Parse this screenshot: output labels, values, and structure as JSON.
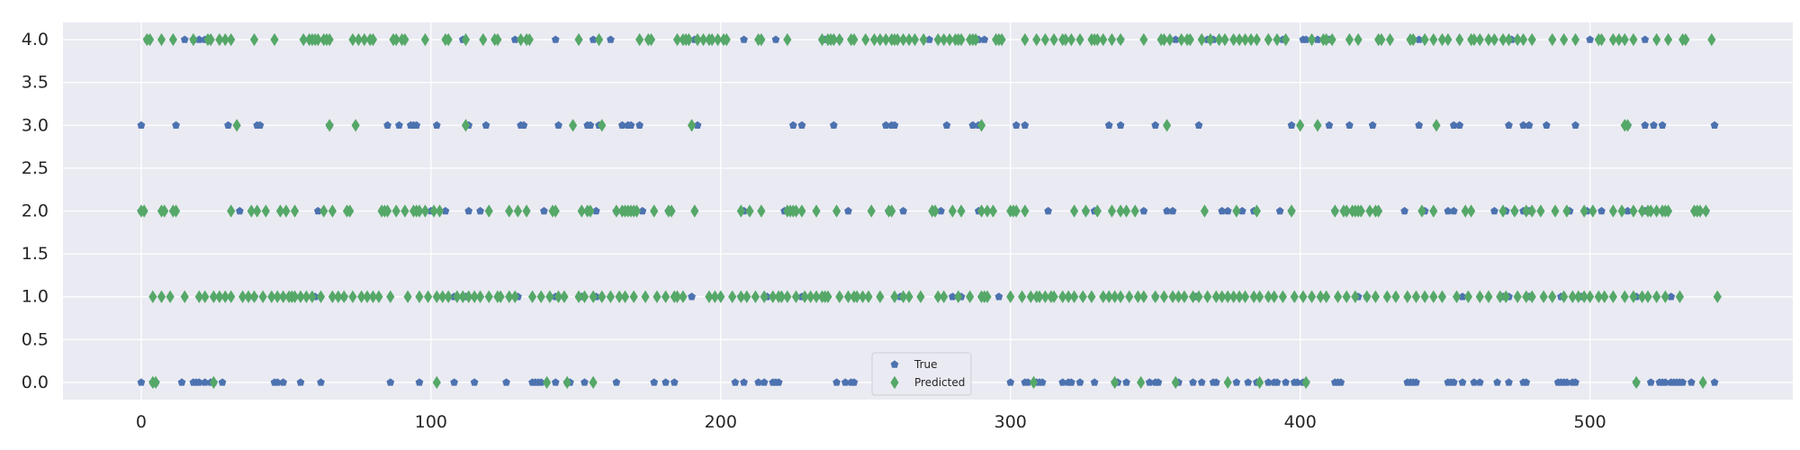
{
  "chart_data": {
    "type": "scatter",
    "title": "",
    "xlabel": "",
    "ylabel": "",
    "xlim": [
      -27,
      570
    ],
    "ylim": [
      -0.2,
      4.2
    ],
    "xticks": [
      0,
      100,
      200,
      300,
      400,
      500
    ],
    "xtick_labels": [
      "0",
      "100",
      "200",
      "300",
      "400",
      "500"
    ],
    "yticks": [
      0.0,
      0.5,
      1.0,
      1.5,
      2.0,
      2.5,
      3.0,
      3.5,
      4.0
    ],
    "ytick_labels": [
      "0.0",
      "0.5",
      "1.0",
      "1.5",
      "2.0",
      "2.5",
      "3.0",
      "3.5",
      "4.0"
    ],
    "grid": true,
    "legend_position": "bottom-center",
    "background_color": "#eaeaf2",
    "grid_color": "#ffffff",
    "series": [
      {
        "name": "True",
        "marker": "pentagon",
        "color": "#4c72b0",
        "points": [
          {
            "y": 0,
            "x": [
              0,
              4,
              5,
              14,
              18,
              19,
              20,
              22,
              24,
              25,
              28,
              46,
              47,
              49,
              55,
              62,
              86,
              96,
              108,
              115,
              126,
              135,
              136,
              137,
              138,
              143,
              147,
              148,
              153,
              164,
              177,
              181,
              184,
              205,
              208,
              213,
              215,
              218,
              219,
              220,
              240,
              243,
              245,
              246,
              266,
              300,
              305,
              306,
              309,
              310,
              311,
              318,
              320,
              321,
              324,
              329,
              336,
              337,
              340,
              348,
              350,
              351,
              358,
              363,
              366,
              370,
              371,
              378,
              382,
              385,
              389,
              391,
              392,
              395,
              398,
              399,
              401,
              402,
              412,
              413,
              414,
              437,
              438,
              439,
              440,
              451,
              452,
              453,
              456,
              460,
              462,
              468,
              472,
              477,
              478,
              489,
              490,
              491,
              492,
              494,
              495,
              516,
              521,
              524,
              525,
              526,
              528,
              529,
              530,
              531,
              532,
              535,
              543
            ]
          },
          {
            "y": 1,
            "x": [
              39,
              60,
              70,
              108,
              112,
              130,
              143,
              152,
              157,
              190,
              207,
              216,
              228,
              262,
              280,
              283,
              296,
              350,
              364,
              420,
              423,
              456,
              470,
              472,
              479,
              490,
              497,
              516,
              528
            ]
          },
          {
            "y": 2,
            "x": [
              0,
              34,
              61,
              100,
              105,
              113,
              117,
              139,
              157,
              164,
              169,
              173,
              182,
              208,
              222,
              226,
              244,
              258,
              263,
              276,
              289,
              313,
              326,
              329,
              346,
              354,
              356,
              373,
              375,
              380,
              384,
              393,
              397,
              412,
              416,
              436,
              443,
              451,
              453,
              467,
              471,
              474,
              477,
              479,
              493,
              499,
              504,
              513,
              519,
              520,
              540
            ]
          },
          {
            "y": 3,
            "x": [
              0,
              12,
              30,
              40,
              41,
              65,
              85,
              89,
              93,
              94,
              95,
              102,
              113,
              119,
              131,
              132,
              144,
              154,
              155,
              158,
              166,
              168,
              169,
              172,
              192,
              225,
              228,
              239,
              257,
              259,
              260,
              278,
              287,
              289,
              302,
              305,
              334,
              338,
              350,
              365,
              397,
              410,
              417,
              425,
              441,
              453,
              455,
              472,
              477,
              479,
              485,
              495,
              513,
              519,
              522,
              525,
              543
            ]
          },
          {
            "y": 4,
            "x": [
              2,
              15,
              18,
              20,
              22,
              111,
              129,
              143,
              156,
              162,
              191,
              208,
              219,
              236,
              241,
              272,
              289,
              291,
              338,
              357,
              368,
              370,
              394,
              401,
              402,
              406,
              410,
              441,
              473,
              500,
              519
            ]
          }
        ]
      },
      {
        "name": "Predicted",
        "marker": "thin_diamond",
        "color": "#55a868",
        "points": [
          {
            "y": 0,
            "x": [
              4,
              5,
              25,
              102,
              140,
              147,
              156,
              308,
              336,
              345,
              357,
              375,
              386,
              402,
              516,
              539
            ]
          },
          {
            "y": 1,
            "x": [
              4,
              7,
              10,
              15,
              20,
              22,
              25,
              27,
              29,
              31,
              35,
              37,
              39,
              42,
              45,
              47,
              49,
              51,
              52,
              53,
              55,
              57,
              59,
              62,
              66,
              68,
              70,
              73,
              76,
              78,
              80,
              82,
              86,
              92,
              96,
              99,
              102,
              104,
              106,
              109,
              111,
              113,
              115,
              117,
              120,
              123,
              124,
              127,
              129,
              135,
              138,
              141,
              144,
              146,
              151,
              153,
              156,
              159,
              162,
              165,
              167,
              170,
              174,
              178,
              181,
              184,
              185,
              187,
              196,
              198,
              200,
              204,
              207,
              209,
              212,
              215,
              218,
              220,
              221,
              223,
              226,
              229,
              231,
              233,
              235,
              236,
              237,
              241,
              244,
              246,
              247,
              249,
              251,
              255,
              260,
              263,
              265,
              269,
              275,
              277,
              282,
              286,
              290,
              291,
              292,
              300,
              304,
              307,
              309,
              310,
              312,
              314,
              315,
              318,
              320,
              322,
              325,
              328,
              332,
              334,
              336,
              338,
              341,
              344,
              346,
              350,
              353,
              356,
              358,
              360,
              363,
              365,
              368,
              371,
              373,
              375,
              377,
              379,
              381,
              384,
              386,
              389,
              391,
              394,
              398,
              401,
              404,
              407,
              409,
              413,
              416,
              419,
              423,
              426,
              430,
              433,
              437,
              440,
              443,
              446,
              449,
              454,
              458,
              462,
              465,
              469,
              471,
              475,
              478,
              480,
              484,
              487,
              491,
              494,
              496,
              498,
              500,
              503,
              505,
              508,
              512,
              515,
              518,
              520,
              523,
              526,
              531,
              544
            ]
          },
          {
            "y": 2,
            "x": [
              0,
              1,
              7,
              8,
              11,
              12,
              31,
              38,
              40,
              43,
              48,
              50,
              53,
              63,
              66,
              71,
              72,
              83,
              84,
              85,
              88,
              91,
              94,
              95,
              96,
              98,
              101,
              103,
              120,
              127,
              130,
              133,
              142,
              143,
              152,
              154,
              155,
              164,
              166,
              167,
              168,
              169,
              170,
              171,
              177,
              182,
              183,
              191,
              207,
              210,
              214,
              223,
              224,
              225,
              226,
              228,
              233,
              240,
              252,
              258,
              259,
              273,
              274,
              280,
              283,
              290,
              292,
              294,
              300,
              301,
              302,
              305,
              322,
              326,
              330,
              335,
              338,
              340,
              343,
              367,
              378,
              385,
              397,
              412,
              415,
              416,
              418,
              419,
              420,
              421,
              424,
              426,
              427,
              442,
              446,
              457,
              459,
              470,
              474,
              478,
              480,
              483,
              488,
              492,
              498,
              501,
              508,
              511,
              515,
              518,
              520,
              521,
              523,
              525,
              526,
              527,
              536,
              537,
              538,
              540
            ]
          },
          {
            "y": 3,
            "x": [
              33,
              65,
              74,
              112,
              149,
              159,
              190,
              290,
              354,
              400,
              406,
              447,
              512,
              513
            ]
          },
          {
            "y": 4,
            "x": [
              2,
              3,
              7,
              11,
              18,
              23,
              24,
              27,
              29,
              31,
              39,
              46,
              56,
              58,
              59,
              60,
              61,
              63,
              64,
              65,
              73,
              75,
              77,
              79,
              80,
              87,
              88,
              90,
              91,
              98,
              105,
              106,
              112,
              118,
              122,
              123,
              131,
              133,
              134,
              151,
              158,
              172,
              175,
              176,
              185,
              187,
              188,
              189,
              192,
              194,
              196,
              197,
              199,
              201,
              202,
              213,
              214,
              223,
              235,
              237,
              238,
              239,
              241,
              245,
              246,
              250,
              253,
              255,
              257,
              259,
              260,
              261,
              263,
              265,
              267,
              270,
              275,
              277,
              279,
              281,
              282,
              283,
              286,
              287,
              288,
              295,
              296,
              297,
              305,
              309,
              312,
              315,
              318,
              319,
              321,
              324,
              328,
              329,
              330,
              332,
              335,
              338,
              346,
              352,
              353,
              355,
              359,
              361,
              362,
              366,
              369,
              372,
              374,
              377,
              379,
              381,
              383,
              385,
              389,
              392,
              395,
              404,
              408,
              409,
              411,
              417,
              420,
              427,
              428,
              431,
              438,
              439,
              443,
              446,
              449,
              451,
              455,
              459,
              460,
              462,
              465,
              467,
              470,
              472,
              475,
              477,
              480,
              487,
              491,
              495,
              503,
              504,
              508,
              510,
              512,
              515,
              523,
              527,
              532,
              533,
              542
            ]
          }
        ]
      }
    ]
  }
}
